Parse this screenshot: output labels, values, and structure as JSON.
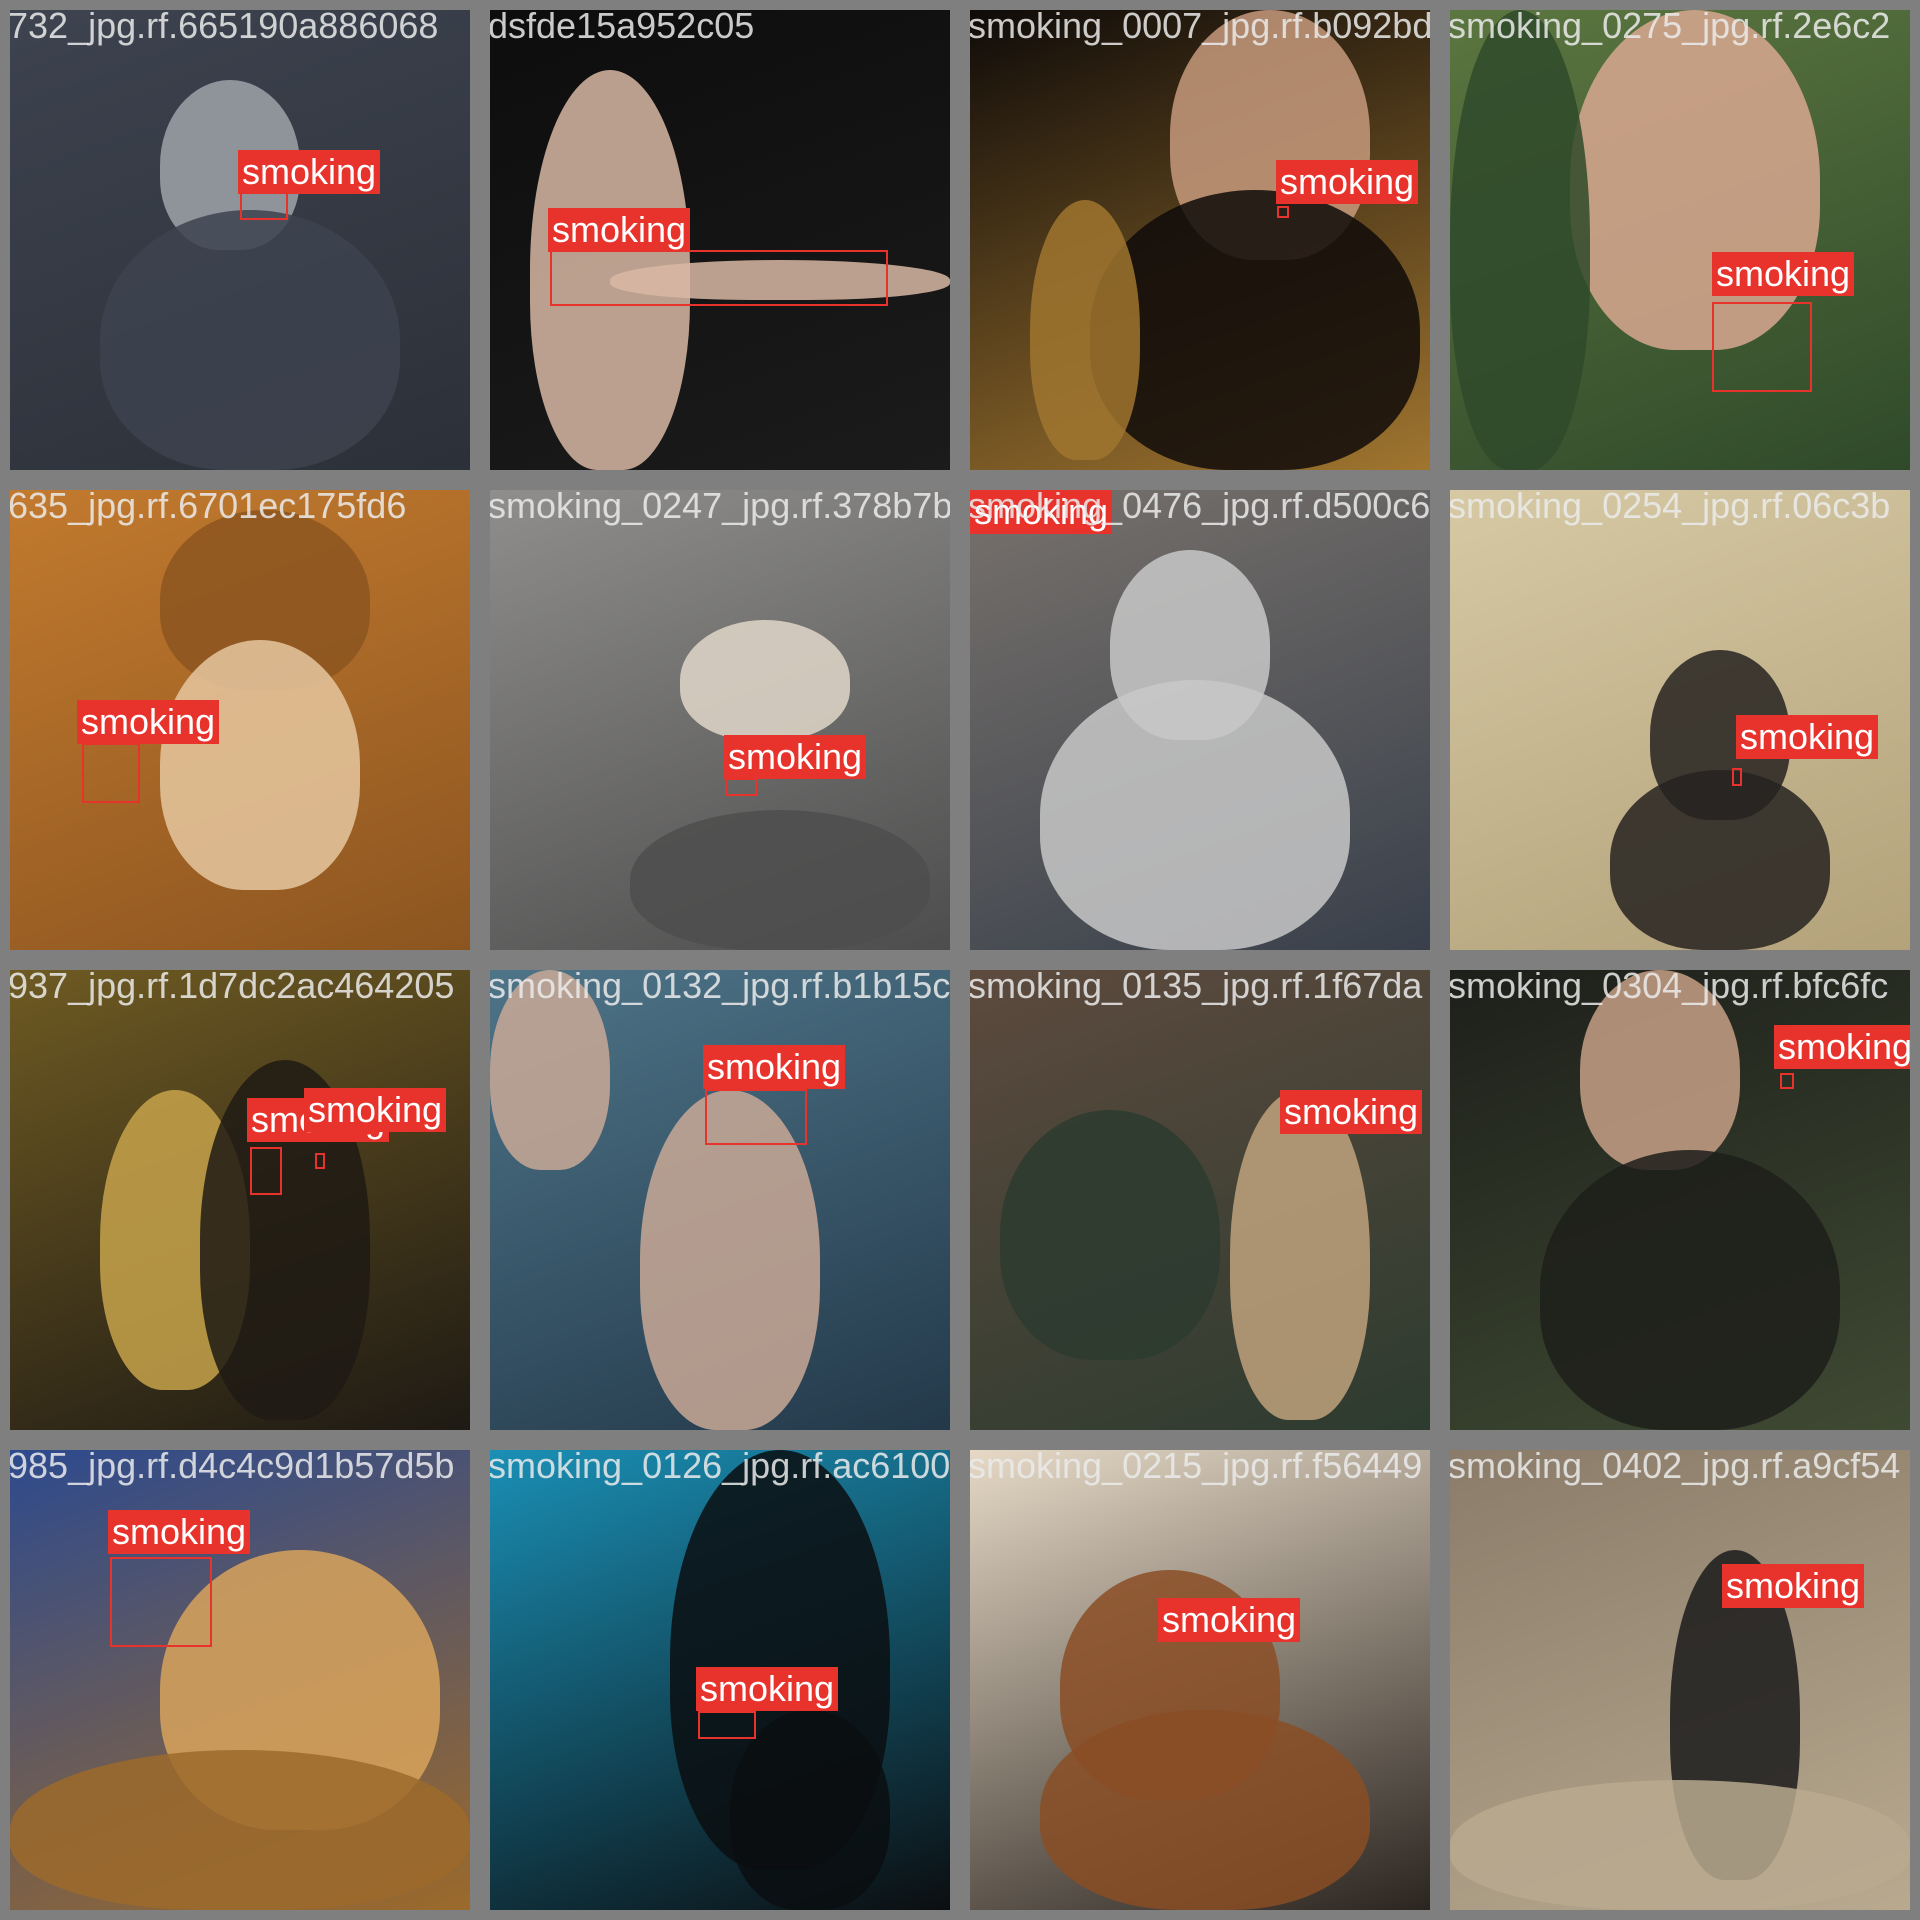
{
  "colors": {
    "background": "#7f7f7f",
    "box": "#e8332c",
    "label_text": "#ffffff",
    "filename_text": "#ebebeb"
  },
  "tiles": [
    {
      "filename": "732_jpg.rf.665190a886068",
      "colors": [
        "#3d434f",
        "#9fa3a9",
        "#2c3038"
      ],
      "detections": [
        {
          "label": "smoking"
        }
      ]
    },
    {
      "filename": "dsfde15a952c05",
      "colors": [
        "#0d0d0d",
        "#d9b9a4",
        "#1b1b1b"
      ],
      "detections": [
        {
          "label": "smoking"
        }
      ]
    },
    {
      "filename": "smoking_0007_jpg.rf.b092bd",
      "colors": [
        "#0f0b09",
        "#c79a7d",
        "#a0752f"
      ],
      "detections": [
        {
          "label": "smoking"
        }
      ]
    },
    {
      "filename": "smoking_0275_jpg.rf.2e6c2",
      "colors": [
        "#5c7640",
        "#d9a890",
        "#2f4a2a"
      ],
      "detections": [
        {
          "label": "smoking"
        }
      ]
    },
    {
      "filename": "635_jpg.rf.6701ec175fd6",
      "colors": [
        "#c27a2e",
        "#e6c7a0",
        "#8c5520"
      ],
      "detections": [
        {
          "label": "smoking"
        }
      ]
    },
    {
      "filename": "smoking_0247_jpg.rf.378b7b",
      "colors": [
        "#8f8e8c",
        "#e0d7c9",
        "#4d4d4d"
      ],
      "detections": [
        {
          "label": "smoking"
        }
      ]
    },
    {
      "filename": "smoking_0476_jpg.rf.d500c6",
      "colors": [
        "#77716c",
        "#c8c8c8",
        "#39404b"
      ],
      "detections": [
        {
          "label": "smoking"
        }
      ]
    },
    {
      "filename": "smoking_0254_jpg.rf.06c3b",
      "colors": [
        "#d6c9a4",
        "#262220",
        "#b3a27a"
      ],
      "detections": [
        {
          "label": "smoking"
        }
      ]
    },
    {
      "filename": "937_jpg.rf.1d7dc2ac464205",
      "colors": [
        "#6e5a22",
        "#c7a34b",
        "#1e1a14"
      ],
      "detections": [
        {
          "label": "smoking"
        },
        {
          "label": "smoking"
        }
      ]
    },
    {
      "filename": "smoking_0132_jpg.rf.b1b15c",
      "colors": [
        "#4e7488",
        "#c9a996",
        "#23394a"
      ],
      "detections": [
        {
          "label": "smoking"
        }
      ]
    },
    {
      "filename": "smoking_0135_jpg.rf.1f67da",
      "colors": [
        "#5d4a3e",
        "#c0a27c",
        "#2d3b2f"
      ],
      "detections": [
        {
          "label": "smoking"
        }
      ]
    },
    {
      "filename": "smoking_0304_jpg.rf.bfc6fc",
      "colors": [
        "#1d1f1a",
        "#c7a086",
        "#3f4a33"
      ],
      "detections": [
        {
          "label": "smoking"
        }
      ]
    },
    {
      "filename": "985_jpg.rf.d4c4c9d1b57d5b",
      "colors": [
        "#2d4a8e",
        "#d8a35c",
        "#9c6a2b"
      ],
      "detections": [
        {
          "label": "smoking"
        }
      ]
    },
    {
      "filename": "smoking_0126_jpg.rf.ac6100",
      "colors": [
        "#1a8fb5",
        "#6fd0e6",
        "#0b0e10"
      ],
      "detections": [
        {
          "label": "smoking"
        }
      ]
    },
    {
      "filename": "smoking_0215_jpg.rf.f56449",
      "colors": [
        "#e6d9c6",
        "#8a4e25",
        "#2b2520"
      ],
      "detections": [
        {
          "label": "smoking"
        }
      ]
    },
    {
      "filename": "smoking_0402_jpg.rf.a9cf54",
      "colors": [
        "#8a7c69",
        "#1b1b1b",
        "#b8a98f"
      ],
      "detections": [
        {
          "label": "smoking"
        }
      ]
    }
  ]
}
